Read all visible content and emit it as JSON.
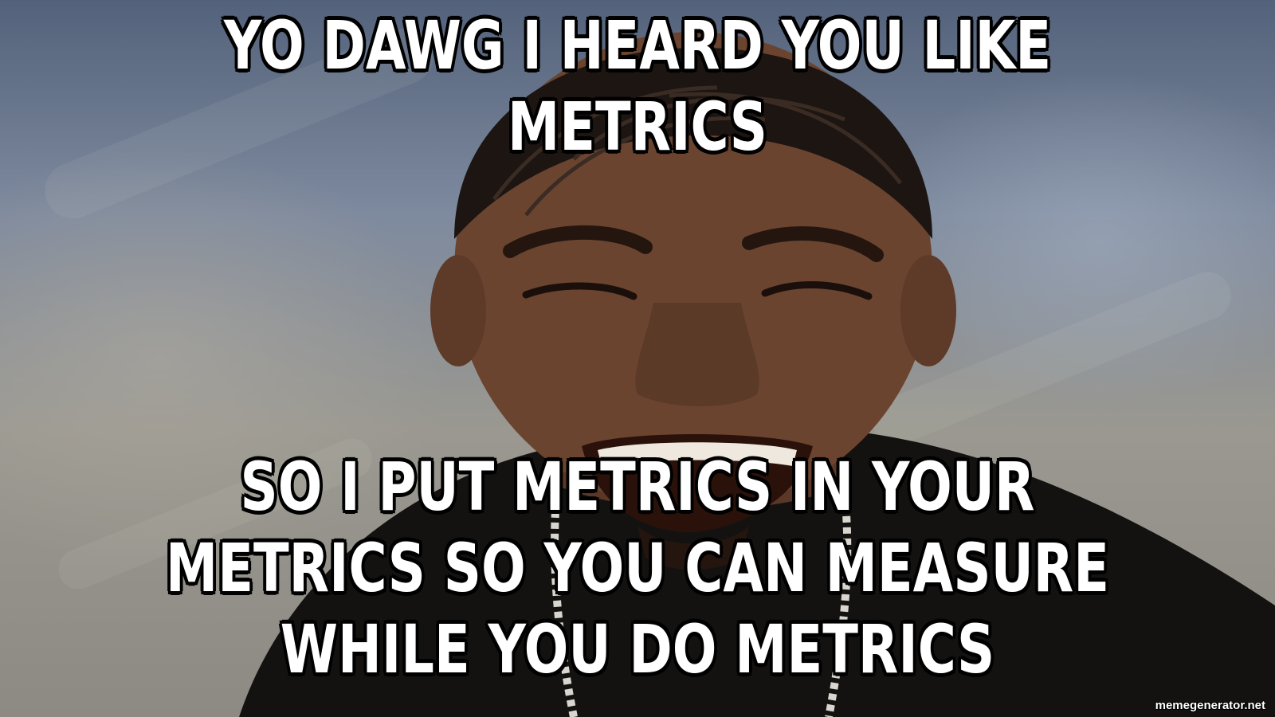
{
  "meme": {
    "top_text": "YO DAWG I HEARD YOU LIKE METRICS",
    "bottom_text": "SO I PUT METRICS IN YOUR METRICS SO YOU CAN MEASURE WHILE YOU DO METRICS",
    "watermark": "memegenerator.net"
  },
  "colors": {
    "caption_fill": "#ffffff",
    "caption_outline": "#000000",
    "background_blue": "#53627b",
    "background_grey": "#9a9890",
    "skin": "#6b4430",
    "shirt": "#141210"
  },
  "image_subject": "laughing-man-photo"
}
